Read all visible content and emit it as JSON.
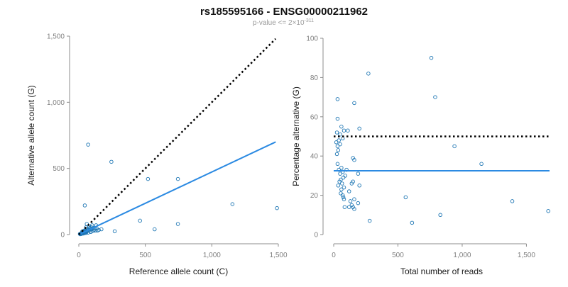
{
  "page": {
    "title": "rs185595166 - ENSG00000211962",
    "subtitle_prefix": "p-value <= 2",
    "subtitle_times": "×",
    "subtitle_base": "10",
    "subtitle_exp": "-311"
  },
  "colors": {
    "point": "#1f77b4",
    "fit": "#2b8ae2",
    "reference": "#000000",
    "axis": "#8c8c8c",
    "tick_text": "#7f7f7f"
  },
  "chart_data": [
    {
      "type": "scatter",
      "title": "",
      "xlabel": "Reference allele count (C)",
      "ylabel": "Alternative allele count (G)",
      "xlim": [
        0,
        1500
      ],
      "ylim": [
        0,
        1500
      ],
      "xticks": [
        0,
        500,
        1000,
        1500
      ],
      "xtick_labels": [
        "0",
        "500",
        "1,000",
        "1,500"
      ],
      "yticks": [
        0,
        500,
        1000,
        1500
      ],
      "ytick_labels": [
        "0",
        "500",
        "1,000",
        "1,500"
      ],
      "reference_line": {
        "style": "dotted",
        "x": [
          0,
          1480
        ],
        "y": [
          0,
          1480
        ]
      },
      "fit_line": {
        "style": "solid",
        "x": [
          0,
          1480
        ],
        "y": [
          0,
          700
        ]
      },
      "points": [
        [
          70,
          680
        ],
        [
          245,
          550
        ],
        [
          45,
          220
        ],
        [
          520,
          420
        ],
        [
          745,
          420
        ],
        [
          1155,
          230
        ],
        [
          1490,
          200
        ],
        [
          460,
          105
        ],
        [
          570,
          40
        ],
        [
          745,
          80
        ],
        [
          270,
          25
        ],
        [
          170,
          40
        ],
        [
          120,
          50
        ],
        [
          95,
          40
        ],
        [
          140,
          30
        ],
        [
          130,
          70
        ],
        [
          100,
          70
        ],
        [
          60,
          80
        ],
        [
          75,
          60
        ],
        [
          55,
          55
        ],
        [
          80,
          30
        ],
        [
          65,
          40
        ],
        [
          50,
          30
        ],
        [
          45,
          25
        ],
        [
          40,
          20
        ],
        [
          35,
          15
        ],
        [
          30,
          10
        ],
        [
          28,
          18
        ],
        [
          25,
          12
        ],
        [
          22,
          8
        ],
        [
          20,
          5
        ],
        [
          18,
          10
        ],
        [
          15,
          6
        ],
        [
          12,
          4
        ],
        [
          10,
          3
        ],
        [
          8,
          5
        ],
        [
          35,
          8
        ],
        [
          42,
          12
        ],
        [
          48,
          18
        ],
        [
          55,
          22
        ],
        [
          60,
          25
        ],
        [
          68,
          30
        ],
        [
          75,
          35
        ],
        [
          85,
          40
        ],
        [
          90,
          20
        ],
        [
          105,
          25
        ],
        [
          110,
          45
        ],
        [
          115,
          35
        ],
        [
          32,
          20
        ],
        [
          26,
          24
        ],
        [
          38,
          28
        ],
        [
          52,
          12
        ],
        [
          58,
          18
        ],
        [
          44,
          32
        ],
        [
          70,
          15
        ],
        [
          82,
          50
        ],
        [
          95,
          55
        ],
        [
          125,
          30
        ],
        [
          135,
          45
        ],
        [
          150,
          35
        ]
      ]
    },
    {
      "type": "scatter",
      "title": "",
      "xlabel": "Total number of reads",
      "ylabel": "Percentage alternative (G)",
      "xlim": [
        0,
        1680
      ],
      "ylim": [
        0,
        100
      ],
      "xticks": [
        0,
        500,
        1000,
        1500
      ],
      "xtick_labels": [
        "0",
        "500",
        "1,000",
        "1,500"
      ],
      "yticks": [
        0,
        20,
        40,
        60,
        80,
        100
      ],
      "ytick_labels": [
        "0",
        "20",
        "40",
        "60",
        "80",
        "100"
      ],
      "reference_line": {
        "style": "dotted",
        "y_value": 50,
        "x": [
          0,
          1680
        ]
      },
      "fit_line": {
        "style": "solid",
        "y_value": 32.5,
        "x": [
          0,
          1680
        ]
      },
      "points": [
        [
          760,
          90
        ],
        [
          270,
          82
        ],
        [
          790,
          70
        ],
        [
          30,
          69
        ],
        [
          160,
          67
        ],
        [
          30,
          59
        ],
        [
          25,
          52
        ],
        [
          60,
          55
        ],
        [
          80,
          53
        ],
        [
          200,
          54
        ],
        [
          110,
          53
        ],
        [
          50,
          51
        ],
        [
          70,
          49
        ],
        [
          40,
          48
        ],
        [
          20,
          47
        ],
        [
          30,
          45
        ],
        [
          50,
          46
        ],
        [
          35,
          43
        ],
        [
          25,
          41
        ],
        [
          940,
          45
        ],
        [
          150,
          39
        ],
        [
          160,
          38
        ],
        [
          1150,
          36
        ],
        [
          30,
          36
        ],
        [
          60,
          34
        ],
        [
          40,
          33
        ],
        [
          70,
          32
        ],
        [
          50,
          31
        ],
        [
          90,
          30
        ],
        [
          75,
          29
        ],
        [
          55,
          28
        ],
        [
          45,
          27
        ],
        [
          65,
          26
        ],
        [
          35,
          25
        ],
        [
          80,
          24
        ],
        [
          60,
          23
        ],
        [
          120,
          22
        ],
        [
          55,
          21
        ],
        [
          70,
          20
        ],
        [
          75,
          19
        ],
        [
          80,
          18
        ],
        [
          150,
          27
        ],
        [
          140,
          26
        ],
        [
          200,
          25
        ],
        [
          160,
          18
        ],
        [
          140,
          15
        ],
        [
          150,
          14
        ],
        [
          160,
          13
        ],
        [
          130,
          17
        ],
        [
          190,
          16
        ],
        [
          85,
          14
        ],
        [
          560,
          19
        ],
        [
          1390,
          17
        ],
        [
          830,
          10
        ],
        [
          1670,
          12
        ],
        [
          280,
          7
        ],
        [
          610,
          6
        ],
        [
          120,
          14
        ],
        [
          100,
          33
        ],
        [
          190,
          31
        ]
      ]
    }
  ]
}
